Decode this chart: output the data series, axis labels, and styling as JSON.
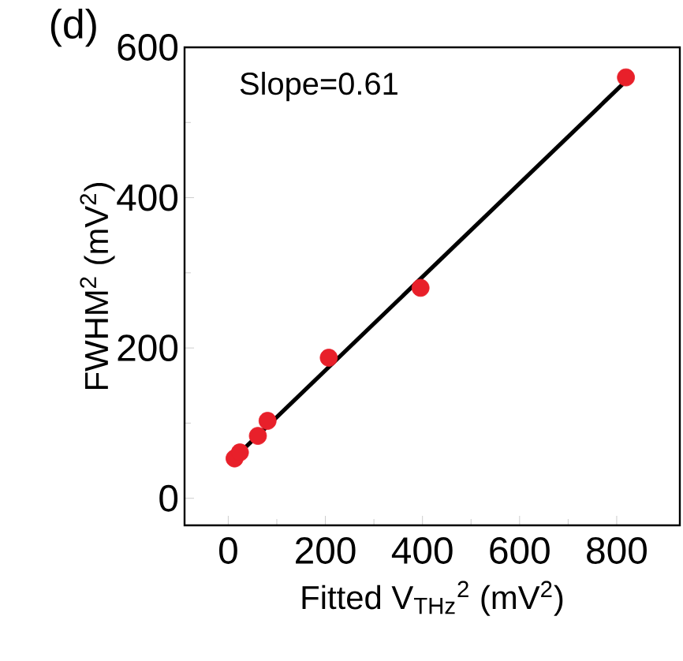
{
  "chart_data": {
    "type": "scatter",
    "xlabel": "Fitted V$_{THz}$$^{2}$ (mV$^{2}$)",
    "ylabel": "FWHM$^{2}$ (mV$^{2}$)",
    "annotations": [
      "(d)",
      "Slope=0.61"
    ],
    "xlim": [
      -90,
      930
    ],
    "ylim": [
      -36,
      600
    ],
    "xticks": [
      0,
      200,
      400,
      600,
      800
    ],
    "yticks": [
      0,
      200,
      400,
      600
    ],
    "series": [
      {
        "marker": "circle",
        "color": "#e8202a",
        "x": [
          13,
          24,
          61,
          81,
          207,
          396,
          819
        ],
        "values": [
          53,
          61,
          83,
          103,
          187,
          280,
          560
        ]
      },
      {
        "type": "line",
        "marker": "none",
        "color": "#000000",
        "x": [
          18,
          822
        ],
        "values": [
          57,
          557
        ]
      }
    ]
  }
}
